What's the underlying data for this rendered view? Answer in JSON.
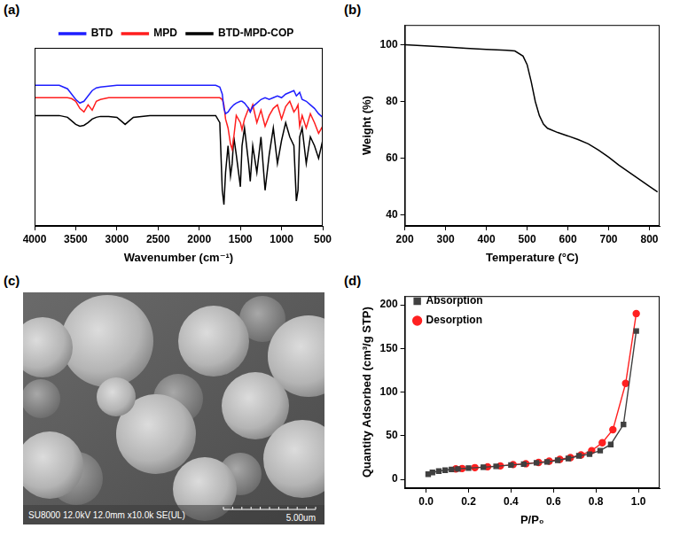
{
  "chart_data": [
    {
      "panel": "(a)",
      "type": "line",
      "x": [
        4000,
        3900,
        3800,
        3700,
        3600,
        3550,
        3500,
        3450,
        3400,
        3350,
        3300,
        3250,
        3200,
        3100,
        3000,
        2950,
        2900,
        2850,
        2800,
        2600,
        2400,
        2200,
        2000,
        1800,
        1750,
        1720,
        1700,
        1680,
        1650,
        1620,
        1600,
        1580,
        1550,
        1500,
        1480,
        1450,
        1400,
        1380,
        1350,
        1300,
        1250,
        1200,
        1150,
        1100,
        1050,
        1000,
        950,
        900,
        850,
        820,
        800,
        780,
        750,
        700,
        650,
        600,
        550,
        500
      ],
      "series": [
        {
          "name": "BTD",
          "color": "#1e1eff",
          "values": [
            79,
            79,
            79,
            79,
            77,
            74,
            71,
            69,
            70,
            73,
            76,
            77.5,
            78,
            78.5,
            79,
            79,
            79,
            79,
            79,
            79,
            79,
            79,
            79,
            79,
            78,
            74,
            66,
            63,
            64,
            66,
            67,
            68,
            69,
            70,
            70,
            69,
            66,
            64,
            67,
            69,
            71,
            72,
            71,
            72,
            73,
            72,
            74,
            75,
            76,
            73,
            74,
            75,
            71,
            70,
            68,
            66,
            63,
            61
          ]
        },
        {
          "name": "MPD",
          "color": "#ff1e1e",
          "values": [
            72,
            72,
            72,
            72,
            72,
            71.5,
            70,
            66,
            64,
            68,
            65,
            70,
            71,
            72,
            72,
            72,
            72,
            72,
            72,
            72,
            72,
            72,
            72,
            72,
            72,
            71,
            68,
            60,
            55,
            46,
            43,
            50,
            62,
            58,
            54,
            60,
            66,
            64,
            68,
            58,
            65,
            56,
            62,
            66,
            68,
            60,
            67,
            70,
            64,
            66,
            68,
            56,
            62,
            55,
            63,
            58,
            52,
            56
          ]
        },
        {
          "name": "BTD-MPD-COP",
          "color": "#000000",
          "values": [
            62,
            62,
            62,
            62,
            61,
            59,
            57,
            56,
            56.5,
            58,
            60,
            61,
            61.5,
            61.5,
            61,
            59,
            57,
            59,
            61,
            62,
            62,
            62,
            62,
            62,
            58,
            20,
            12,
            30,
            45,
            28,
            35,
            50,
            40,
            22,
            45,
            55,
            35,
            25,
            45,
            30,
            50,
            20,
            40,
            55,
            35,
            48,
            58,
            50,
            45,
            14,
            20,
            50,
            55,
            35,
            50,
            45,
            38,
            48
          ]
        }
      ],
      "x_label": "Wavenumber (cm⁻¹)",
      "xlim": [
        4000,
        500
      ],
      "xticks": [
        4000,
        3500,
        3000,
        2500,
        2000,
        1500,
        1000,
        500
      ],
      "ylim": [
        0,
        100
      ],
      "tick_labels": "x",
      "grid": false,
      "legend": "top"
    },
    {
      "panel": "(b)",
      "type": "line",
      "x": [
        200,
        250,
        300,
        350,
        400,
        450,
        470,
        490,
        500,
        510,
        520,
        530,
        540,
        550,
        575,
        600,
        625,
        650,
        675,
        700,
        725,
        750,
        775,
        800,
        820
      ],
      "values": [
        100,
        99.6,
        99.2,
        98.8,
        98.4,
        98.1,
        97.8,
        96,
        93,
        87,
        80,
        75,
        72,
        70.5,
        69,
        67.8,
        66.5,
        65,
        62.8,
        60.3,
        57.5,
        55,
        52.5,
        50,
        48
      ],
      "color": "#000000",
      "x_label": "Temperature (°C)",
      "y_label": "Weight (%)",
      "xlim": [
        200,
        825
      ],
      "xticks": [
        200,
        300,
        400,
        500,
        600,
        700,
        800
      ],
      "ylim": [
        36,
        107
      ],
      "yticks": [
        40,
        60,
        80,
        100
      ],
      "grid": false
    },
    {
      "panel": "(d)",
      "type": "line",
      "series": [
        {
          "name": "Absorption",
          "color": "#404040",
          "marker": "square",
          "x": [
            0.01,
            0.03,
            0.06,
            0.09,
            0.12,
            0.15,
            0.2,
            0.27,
            0.33,
            0.4,
            0.46,
            0.52,
            0.57,
            0.62,
            0.67,
            0.72,
            0.77,
            0.82,
            0.87,
            0.93,
            0.99
          ],
          "values": [
            6,
            8,
            9.5,
            10.5,
            11.5,
            12,
            13,
            14,
            15,
            16.5,
            17.5,
            19,
            20,
            22,
            24,
            27,
            29,
            33,
            40,
            63,
            170
          ]
        },
        {
          "name": "Desorption",
          "color": "#ff2020",
          "marker": "circle",
          "x": [
            0.99,
            0.94,
            0.88,
            0.83,
            0.78,
            0.73,
            0.68,
            0.63,
            0.58,
            0.53,
            0.47,
            0.41,
            0.35,
            0.29,
            0.23,
            0.17,
            0.14
          ],
          "values": [
            190,
            110,
            57,
            42,
            33,
            28,
            25,
            23,
            21,
            19.5,
            18,
            17,
            15.5,
            14.5,
            13.5,
            12.5,
            12
          ]
        }
      ],
      "x_label": "P/P₀",
      "y_label": "Quantity Adsorbed (cm³/g STP)",
      "xlim": [
        -0.1,
        1.1
      ],
      "xticks": [
        {
          "value": 0,
          "label": "0.0"
        },
        0.2,
        0.4,
        0.6,
        0.8,
        {
          "value": 1,
          "label": "1.0"
        }
      ],
      "ylim": [
        -10,
        210
      ],
      "yticks": [
        0,
        50,
        100,
        150,
        200
      ],
      "grid": false,
      "legend": "upper left"
    }
  ],
  "image": {
    "panel": "(c)",
    "caption": "SU8000 12.0kV 12.0mm x10.0k SE(UL)",
    "scale_bar": "5.00um"
  }
}
